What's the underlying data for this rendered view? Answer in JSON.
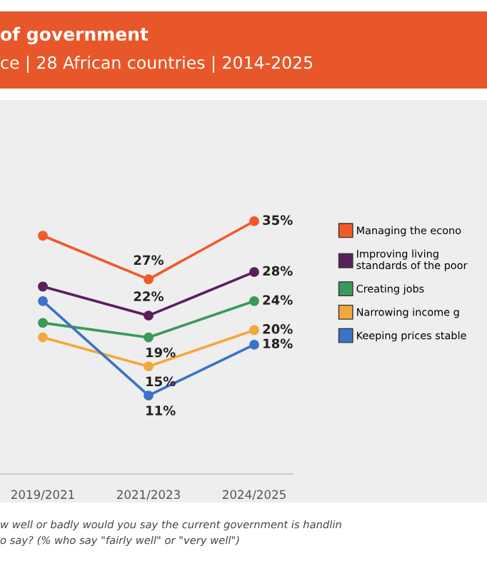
{
  "chart_data": {
    "type": "line",
    "title": "of government",
    "subtitle": "ce | 28 African countries | 2014-2025",
    "categories": [
      "2019/2021",
      "2021/2023",
      "2024/2025"
    ],
    "series": [
      {
        "name": "Managing the econo",
        "color": "#f05a28",
        "values": [
          33,
          27,
          35
        ],
        "value_labels": [
          null,
          "27%",
          "35%"
        ]
      },
      {
        "name": "Improving living\nstandards of the poor",
        "color": "#5b1f5e",
        "values": [
          26,
          22,
          28
        ],
        "value_labels": [
          null,
          "22%",
          "28%"
        ]
      },
      {
        "name": "Creating jobs",
        "color": "#3a9a5b",
        "values": [
          21,
          19,
          24
        ],
        "value_labels": [
          null,
          "19%",
          "24%"
        ]
      },
      {
        "name": "Narrowing income g",
        "color": "#f2a93b",
        "values": [
          19,
          15,
          20
        ],
        "value_labels": [
          null,
          "15%",
          "20%"
        ]
      },
      {
        "name": "Keeping prices stable",
        "color": "#3a73c8",
        "values": [
          24,
          11,
          18
        ],
        "value_labels": [
          null,
          "11%",
          "18%"
        ]
      }
    ],
    "grid": false,
    "legend": "right",
    "marker": "circle",
    "line_style": "solid",
    "annotations": [
      "w well or badly would you say the current government is handlin",
      "o say? (% who say \"fairly well\" or \"very well\")"
    ]
  }
}
